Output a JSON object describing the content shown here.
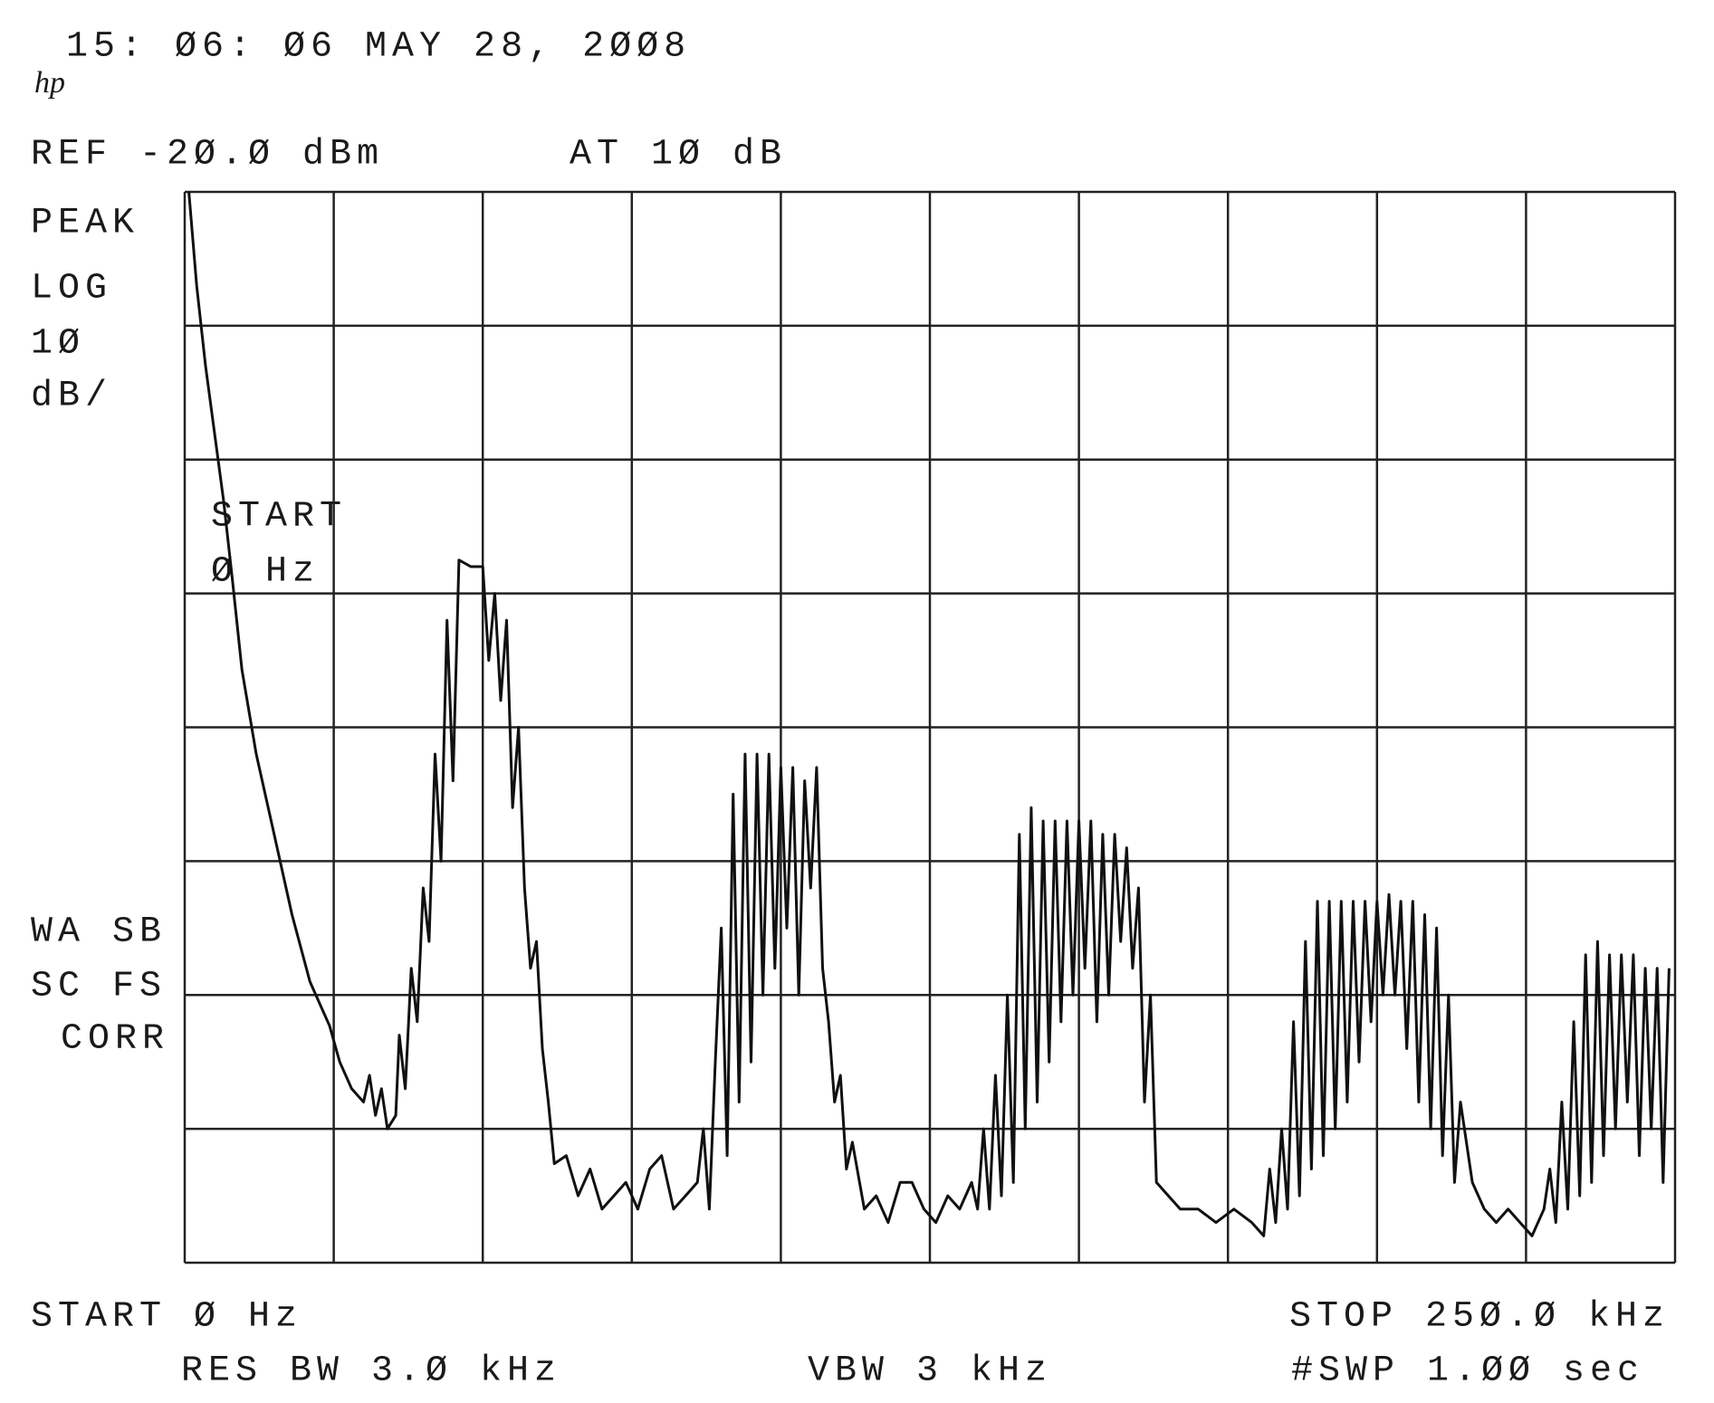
{
  "chart_data": {
    "type": "line",
    "timestamp": "15: Ø6: Ø6 MAY 28,  2ØØ8",
    "logo": "hp",
    "reference": "REF -2Ø.Ø dBm",
    "attenuation": "AT 1Ø dB",
    "detector": "PEAK",
    "scale_type": "LOG",
    "scale_value": "1Ø",
    "scale_unit": "dB/",
    "marker_label": "START",
    "marker_value": "Ø Hz",
    "status": [
      "WA SB",
      "SC FS",
      "CORR"
    ],
    "start": "START Ø Hz",
    "stop": "STOP 25Ø.Ø kHz",
    "rbw": "RES BW 3.Ø kHz",
    "vbw": "VBW 3 kHz",
    "sweep": "#SWP 1.ØØ  sec",
    "color": "#111111",
    "grid": true,
    "xlim": [
      0,
      250
    ],
    "xticks": [
      0,
      25,
      50,
      75,
      100,
      125,
      150,
      175,
      200,
      225,
      250
    ],
    "ylim": [
      -100,
      -20
    ],
    "yticks": [
      -100,
      -90,
      -80,
      -70,
      -60,
      -50,
      -40,
      -30,
      -20
    ],
    "x": [
      0.7,
      2,
      3.5,
      5,
      6.5,
      8,
      9.6,
      12,
      15,
      18,
      21,
      24.3,
      26,
      28,
      30,
      31,
      32,
      33,
      34,
      35.4,
      36,
      37,
      38,
      39,
      40,
      41,
      42,
      43,
      44,
      45,
      46,
      48,
      50,
      51,
      52,
      53,
      54,
      55,
      56,
      57,
      58,
      59,
      60,
      61,
      62,
      64,
      66,
      68,
      70,
      72,
      74,
      76,
      78,
      80,
      82,
      84,
      86,
      87,
      88,
      89,
      90,
      91,
      92,
      93,
      94,
      95,
      96,
      97,
      98,
      99,
      100,
      101,
      102,
      103,
      104,
      105,
      106,
      107,
      108,
      109,
      110,
      111,
      112,
      114,
      116,
      118,
      120,
      122,
      124,
      126,
      128,
      130,
      132,
      133,
      134,
      135,
      136,
      137,
      138,
      139,
      140,
      141,
      142,
      143,
      144,
      145,
      146,
      147,
      148,
      149,
      150,
      151,
      152,
      153,
      154,
      155,
      156,
      157,
      158,
      159,
      160,
      161,
      162,
      163,
      165,
      167,
      170,
      173,
      176,
      179,
      181,
      182,
      183,
      184,
      185,
      186,
      187,
      188,
      189,
      190,
      191,
      192,
      193,
      194,
      195,
      196,
      197,
      198,
      199,
      200,
      201,
      202,
      203,
      204,
      205,
      206,
      207,
      208,
      209,
      210,
      211,
      212,
      213,
      214,
      216,
      218,
      220,
      222,
      224,
      226,
      228,
      229,
      230,
      231,
      232,
      233,
      234,
      235,
      236,
      237,
      238,
      239,
      240,
      241,
      242,
      243,
      244,
      245,
      246,
      247,
      248,
      249
    ],
    "values": [
      -20,
      -27,
      -33,
      -38,
      -43,
      -49,
      -55.7,
      -62,
      -68,
      -74,
      -79,
      -82.3,
      -85,
      -87,
      -88,
      -86,
      -89,
      -87,
      -90,
      -89,
      -83,
      -87,
      -78,
      -82,
      -72,
      -76,
      -62,
      -70,
      -52,
      -64,
      -47.5,
      -48,
      -48,
      -55,
      -50,
      -58,
      -52,
      -66,
      -60,
      -72,
      -78,
      -76,
      -84,
      -88,
      -92.6,
      -92,
      -95,
      -93,
      -96,
      -95,
      -94,
      -96,
      -93,
      -92,
      -96,
      -95,
      -94,
      -90,
      -96,
      -85,
      -75,
      -92,
      -65,
      -88,
      -62,
      -85,
      -62,
      -80,
      -62,
      -78,
      -63,
      -75,
      -63,
      -80,
      -64,
      -72,
      -63,
      -78,
      -82,
      -88,
      -86,
      -93,
      -91,
      -96,
      -95,
      -97,
      -94,
      -94,
      -96,
      -97,
      -95,
      -96,
      -94,
      -96,
      -90,
      -96,
      -86,
      -95,
      -80,
      -94,
      -68,
      -90,
      -66,
      -88,
      -67,
      -85,
      -67,
      -82,
      -67,
      -80,
      -67,
      -78,
      -67,
      -82,
      -68,
      -80,
      -68,
      -76,
      -69,
      -78,
      -72,
      -88,
      -80,
      -94,
      -95,
      -96,
      -96,
      -97,
      -96,
      -97,
      -98,
      -93,
      -97,
      -90,
      -96,
      -82,
      -95,
      -76,
      -93,
      -73,
      -92,
      -73,
      -90,
      -73,
      -88,
      -73,
      -85,
      -73,
      -82,
      -73,
      -80,
      -72.5,
      -80,
      -73,
      -84,
      -73,
      -88,
      -74,
      -90,
      -75,
      -92,
      -80,
      -94,
      -88,
      -94,
      -96,
      -97,
      -96,
      -97,
      -98,
      -96,
      -93,
      -97,
      -88,
      -96,
      -82,
      -95,
      -77,
      -94,
      -76,
      -92,
      -77,
      -90,
      -77,
      -88,
      -77,
      -92,
      -78,
      -90,
      -78,
      -94,
      -78
    ]
  }
}
